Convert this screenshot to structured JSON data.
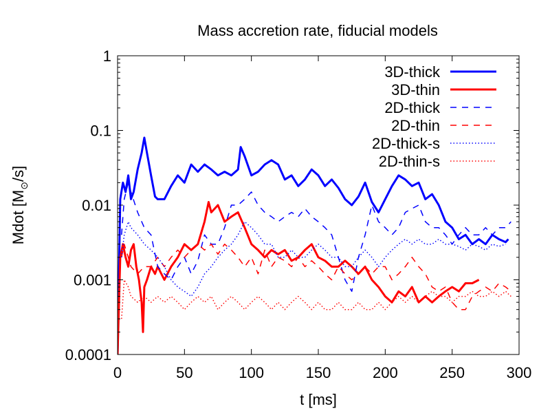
{
  "chart_data": {
    "type": "line",
    "title": "Mass accretion rate, fiducial models",
    "xlabel": "t [ms]",
    "ylabel_parts": [
      "Mdot [M",
      "⊙",
      "/s]"
    ],
    "xscale": "linear",
    "yscale": "log",
    "xlim": [
      0,
      300
    ],
    "ylim": [
      0.0001,
      1
    ],
    "xticks": [
      0,
      50,
      100,
      150,
      200,
      250,
      300
    ],
    "xtick_labels": [
      "0",
      "50",
      "100",
      "150",
      "200",
      "250",
      "300"
    ],
    "yticks": [
      0.0001,
      0.001,
      0.01,
      0.1,
      1
    ],
    "ytick_labels": [
      "0.0001",
      "0.001",
      "0.01",
      "0.1",
      "1"
    ],
    "legend_position": "top-right",
    "series": [
      {
        "name": "3D-thick",
        "color": "#0000ff",
        "style": "solid",
        "weight": "thick",
        "x": [
          0,
          2,
          4,
          6,
          8,
          10,
          12,
          15,
          18,
          20,
          22,
          25,
          28,
          30,
          35,
          40,
          45,
          50,
          55,
          60,
          65,
          70,
          75,
          80,
          85,
          90,
          92,
          95,
          100,
          105,
          110,
          115,
          120,
          125,
          130,
          135,
          140,
          145,
          150,
          155,
          160,
          165,
          170,
          175,
          180,
          185,
          190,
          195,
          200,
          205,
          210,
          215,
          220,
          225,
          230,
          235,
          240,
          245,
          250,
          255,
          260,
          265,
          270,
          275,
          280,
          285,
          290,
          292
        ],
        "y": [
          0.0001,
          0.012,
          0.02,
          0.015,
          0.025,
          0.012,
          0.015,
          0.03,
          0.05,
          0.08,
          0.05,
          0.025,
          0.013,
          0.012,
          0.012,
          0.018,
          0.025,
          0.02,
          0.035,
          0.028,
          0.035,
          0.03,
          0.025,
          0.028,
          0.025,
          0.03,
          0.06,
          0.045,
          0.025,
          0.028,
          0.035,
          0.04,
          0.035,
          0.022,
          0.025,
          0.018,
          0.022,
          0.03,
          0.025,
          0.018,
          0.022,
          0.017,
          0.012,
          0.01,
          0.013,
          0.02,
          0.011,
          0.008,
          0.012,
          0.018,
          0.025,
          0.022,
          0.018,
          0.02,
          0.012,
          0.014,
          0.01,
          0.006,
          0.005,
          0.0035,
          0.004,
          0.003,
          0.0035,
          0.003,
          0.004,
          0.0035,
          0.0032,
          0.0035
        ]
      },
      {
        "name": "3D-thin",
        "color": "#ff0000",
        "style": "solid",
        "weight": "thick",
        "x": [
          0,
          2,
          4,
          6,
          8,
          10,
          12,
          14,
          16,
          18,
          19,
          20,
          22,
          25,
          28,
          30,
          35,
          40,
          45,
          50,
          55,
          60,
          65,
          68,
          70,
          75,
          80,
          85,
          90,
          95,
          100,
          105,
          110,
          115,
          120,
          125,
          130,
          135,
          140,
          145,
          150,
          155,
          160,
          165,
          170,
          175,
          180,
          185,
          190,
          195,
          200,
          205,
          210,
          215,
          220,
          225,
          230,
          235,
          240,
          245,
          250,
          255,
          260,
          265,
          270
        ],
        "y": [
          0.0001,
          0.002,
          0.003,
          0.002,
          0.0015,
          0.0025,
          0.003,
          0.0015,
          0.001,
          0.0005,
          0.0002,
          0.0008,
          0.001,
          0.0015,
          0.0012,
          0.0015,
          0.001,
          0.0015,
          0.002,
          0.003,
          0.0025,
          0.003,
          0.006,
          0.011,
          0.008,
          0.01,
          0.006,
          0.007,
          0.008,
          0.005,
          0.003,
          0.0025,
          0.002,
          0.0025,
          0.0022,
          0.0025,
          0.0018,
          0.002,
          0.0025,
          0.003,
          0.002,
          0.0018,
          0.0015,
          0.0015,
          0.0018,
          0.0015,
          0.0012,
          0.0015,
          0.001,
          0.0008,
          0.0006,
          0.0005,
          0.0007,
          0.0006,
          0.0008,
          0.0005,
          0.0006,
          0.0005,
          0.0006,
          0.0007,
          0.0008,
          0.0007,
          0.0009,
          0.0009,
          0.001
        ]
      },
      {
        "name": "2D-thick",
        "color": "#0000ff",
        "style": "dashed",
        "weight": "thin",
        "x": [
          3,
          5,
          8,
          10,
          15,
          20,
          25,
          30,
          35,
          40,
          45,
          50,
          55,
          60,
          65,
          70,
          75,
          80,
          85,
          90,
          95,
          100,
          105,
          110,
          115,
          120,
          125,
          130,
          135,
          140,
          145,
          150,
          155,
          160,
          165,
          170,
          175,
          180,
          185,
          190,
          195,
          200,
          205,
          210,
          215,
          220,
          225,
          230,
          235,
          240,
          245,
          250,
          255,
          260,
          265,
          270,
          275,
          280,
          285,
          290,
          294
        ],
        "y": [
          0.004,
          0.012,
          0.02,
          0.015,
          0.008,
          0.005,
          0.004,
          0.0015,
          0.0012,
          0.001,
          0.0015,
          0.002,
          0.0012,
          0.0018,
          0.004,
          0.003,
          0.003,
          0.005,
          0.01,
          0.01,
          0.012,
          0.015,
          0.01,
          0.008,
          0.007,
          0.006,
          0.007,
          0.008,
          0.007,
          0.009,
          0.007,
          0.006,
          0.005,
          0.004,
          0.002,
          0.001,
          0.0007,
          0.002,
          0.004,
          0.01,
          0.006,
          0.005,
          0.004,
          0.005,
          0.008,
          0.009,
          0.01,
          0.006,
          0.005,
          0.005,
          0.004,
          0.003,
          0.004,
          0.005,
          0.004,
          0.004,
          0.005,
          0.004,
          0.005,
          0.005,
          0.006
        ]
      },
      {
        "name": "2D-thin",
        "color": "#ff0000",
        "style": "dashed",
        "weight": "thin",
        "x": [
          3,
          5,
          8,
          10,
          15,
          20,
          25,
          30,
          35,
          40,
          45,
          50,
          55,
          60,
          65,
          70,
          75,
          80,
          85,
          90,
          95,
          100,
          105,
          110,
          115,
          120,
          125,
          130,
          135,
          140,
          145,
          150,
          155,
          160,
          165,
          170,
          175,
          180,
          185,
          190,
          195,
          200,
          205,
          210,
          215,
          220,
          225,
          230,
          235,
          240,
          245,
          250,
          255,
          260,
          265,
          270,
          275,
          280,
          285,
          290,
          294
        ],
        "y": [
          0.002,
          0.003,
          0.002,
          0.0015,
          0.0012,
          0.0015,
          0.0015,
          0.002,
          0.0015,
          0.002,
          0.0025,
          0.002,
          0.0025,
          0.003,
          0.0025,
          0.003,
          0.0022,
          0.003,
          0.0025,
          0.002,
          0.0015,
          0.002,
          0.0012,
          0.0025,
          0.0015,
          0.002,
          0.0018,
          0.0015,
          0.002,
          0.0015,
          0.0018,
          0.0015,
          0.0012,
          0.001,
          0.0015,
          0.0012,
          0.001,
          0.0012,
          0.0015,
          0.0012,
          0.0015,
          0.0015,
          0.001,
          0.0012,
          0.0015,
          0.002,
          0.0015,
          0.0012,
          0.0008,
          0.0007,
          0.0008,
          0.0005,
          0.0004,
          0.0004,
          0.0006,
          0.0007,
          0.0008,
          0.0007,
          0.0009,
          0.0008,
          0.0007
        ]
      },
      {
        "name": "2D-thick-s",
        "color": "#0000ff",
        "style": "dotted",
        "weight": "thin",
        "x": [
          3,
          5,
          8,
          10,
          15,
          20,
          25,
          30,
          35,
          40,
          45,
          50,
          55,
          60,
          65,
          70,
          75,
          80,
          85,
          90,
          95,
          100,
          105,
          110,
          115,
          120,
          125,
          130,
          135,
          140,
          145,
          150,
          155,
          160,
          165,
          170,
          175,
          180,
          185,
          190,
          195,
          200,
          205,
          210,
          215,
          220,
          225,
          230,
          235,
          240,
          245,
          250,
          255,
          260,
          265,
          270,
          275,
          280,
          285,
          290
        ],
        "y": [
          0.002,
          0.004,
          0.006,
          0.005,
          0.004,
          0.003,
          0.0025,
          0.002,
          0.0015,
          0.001,
          0.0008,
          0.0007,
          0.0006,
          0.0008,
          0.0012,
          0.0015,
          0.002,
          0.0025,
          0.003,
          0.004,
          0.006,
          0.005,
          0.004,
          0.003,
          0.003,
          0.002,
          0.002,
          0.0025,
          0.002,
          0.002,
          0.0025,
          0.003,
          0.0025,
          0.002,
          0.002,
          0.0015,
          0.0015,
          0.002,
          0.0025,
          0.002,
          0.0015,
          0.002,
          0.0025,
          0.003,
          0.0035,
          0.003,
          0.0035,
          0.003,
          0.003,
          0.0035,
          0.003,
          0.003,
          0.0028,
          0.0025,
          0.003,
          0.0028,
          0.0025,
          0.003,
          0.0028,
          0.003
        ]
      },
      {
        "name": "2D-thin-s",
        "color": "#ff0000",
        "style": "dotted",
        "weight": "thin",
        "x": [
          3,
          5,
          8,
          10,
          15,
          20,
          25,
          30,
          35,
          40,
          45,
          50,
          55,
          60,
          65,
          70,
          75,
          80,
          85,
          90,
          95,
          100,
          105,
          110,
          115,
          120,
          125,
          130,
          135,
          140,
          145,
          150,
          155,
          160,
          165,
          170,
          175,
          180,
          185,
          190,
          195,
          200,
          205,
          210,
          215,
          220,
          225,
          230,
          235,
          240,
          245,
          250,
          255,
          260,
          265,
          270,
          275,
          280,
          285,
          290,
          294
        ],
        "y": [
          0.0003,
          0.001,
          0.0008,
          0.0006,
          0.0005,
          0.0006,
          0.0005,
          0.0006,
          0.0005,
          0.0006,
          0.0005,
          0.0004,
          0.0005,
          0.0006,
          0.0005,
          0.0006,
          0.0004,
          0.0005,
          0.0006,
          0.0005,
          0.0004,
          0.0005,
          0.0006,
          0.0005,
          0.0004,
          0.0005,
          0.0004,
          0.0005,
          0.0006,
          0.0005,
          0.0004,
          0.0005,
          0.0004,
          0.0004,
          0.0005,
          0.0004,
          0.0004,
          0.0005,
          0.0004,
          0.0004,
          0.0005,
          0.0004,
          0.0005,
          0.0006,
          0.0005,
          0.0006,
          0.0005,
          0.0006,
          0.0007,
          0.0006,
          0.0006,
          0.0005,
          0.0006,
          0.0006,
          0.0007,
          0.0006,
          0.0006,
          0.0007,
          0.0006,
          0.0007,
          0.0006
        ]
      }
    ]
  }
}
